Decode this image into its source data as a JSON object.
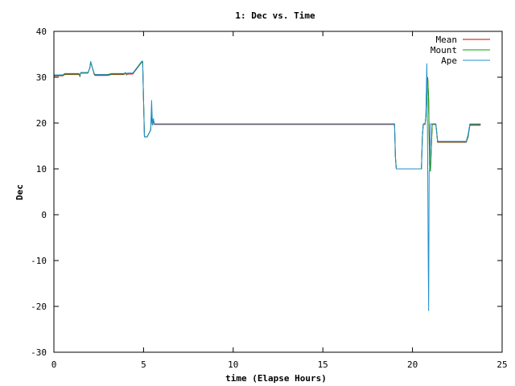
{
  "chart_data": {
    "type": "line",
    "title": "1: Dec vs. Time",
    "xlabel": "time (Elapse Hours)",
    "ylabel": "Dec",
    "xlim": [
      0,
      25
    ],
    "ylim": [
      -30,
      40
    ],
    "xticks": [
      "0",
      "5",
      "10",
      "15",
      "20",
      "25"
    ],
    "yticks": [
      "-30",
      "-20",
      "-10",
      "0",
      "10",
      "20",
      "30",
      "40"
    ],
    "grid": false,
    "legend_position": "top-right",
    "series": [
      {
        "name": "Mean",
        "color": "#cc0000",
        "x": [
          0,
          0.5,
          0.6,
          1.4,
          1.45,
          1.5,
          1.9,
          2.0,
          2.05,
          2.15,
          2.25,
          2.3,
          2.7,
          3.0,
          3.2,
          3.9,
          4.0,
          4.05,
          4.1,
          4.4,
          4.9,
          4.95,
          5.0,
          5.05,
          5.1,
          5.2,
          5.4,
          5.45,
          5.5,
          5.55,
          5.6,
          5.65,
          19.0,
          19.05,
          19.1,
          19.2,
          20.5,
          20.55,
          20.6,
          20.7,
          20.75,
          20.8,
          20.85,
          20.9,
          20.95,
          21.0,
          21.1,
          21.2,
          21.3,
          21.35,
          21.4,
          21.5,
          23.0,
          23.1,
          23.2,
          23.3,
          23.8
        ],
        "y": [
          30.3,
          30.3,
          30.6,
          30.6,
          30.2,
          30.9,
          30.9,
          32.0,
          33.3,
          32.0,
          30.6,
          30.4,
          30.4,
          30.4,
          30.6,
          30.6,
          30.9,
          30.5,
          30.7,
          30.7,
          33.3,
          33.3,
          25.0,
          17.0,
          17.0,
          17.0,
          18.5,
          23.0,
          19.5,
          20.5,
          19.7,
          19.7,
          19.7,
          12.5,
          10.0,
          10.0,
          10.0,
          17.0,
          19.7,
          19.7,
          21.5,
          29.5,
          30.0,
          25.0,
          11.0,
          9.5,
          19.7,
          19.7,
          19.7,
          18.0,
          15.8,
          15.8,
          15.8,
          17.0,
          19.5,
          19.5,
          19.5
        ]
      },
      {
        "name": "Mount",
        "color": "#00a000",
        "x": [
          0,
          0.5,
          0.6,
          1.4,
          1.45,
          1.5,
          1.9,
          2.0,
          2.05,
          2.15,
          2.25,
          2.3,
          2.7,
          3.0,
          3.2,
          3.9,
          4.0,
          4.05,
          4.1,
          4.4,
          4.9,
          4.95,
          5.0,
          5.05,
          5.1,
          5.2,
          5.4,
          5.45,
          5.5,
          5.55,
          5.6,
          5.65,
          19.0,
          19.05,
          19.1,
          19.2,
          20.5,
          20.55,
          20.6,
          20.7,
          20.75,
          20.8,
          20.85,
          20.9,
          20.95,
          21.0,
          21.1,
          21.2,
          21.3,
          21.35,
          21.4,
          21.5,
          23.0,
          23.1,
          23.2,
          23.3,
          23.8
        ],
        "y": [
          30.4,
          30.4,
          30.7,
          30.7,
          30.3,
          31.0,
          31.0,
          32.0,
          33.3,
          32.0,
          30.7,
          30.5,
          30.5,
          30.5,
          30.7,
          30.7,
          31.0,
          30.6,
          30.8,
          30.8,
          33.3,
          33.3,
          25.0,
          17.0,
          17.0,
          17.0,
          18.5,
          23.0,
          19.5,
          20.5,
          19.8,
          19.8,
          19.8,
          12.5,
          10.0,
          10.0,
          10.0,
          17.0,
          19.8,
          19.8,
          21.5,
          29.5,
          30.0,
          25.0,
          11.0,
          9.5,
          19.8,
          19.8,
          19.8,
          18.0,
          15.9,
          15.9,
          15.9,
          17.0,
          19.7,
          19.7,
          19.7
        ]
      },
      {
        "name": "Ape",
        "color": "#1f8fce",
        "x": [
          0,
          0.5,
          0.6,
          1.4,
          1.45,
          1.5,
          1.9,
          2.0,
          2.05,
          2.15,
          2.25,
          2.3,
          2.7,
          3.0,
          3.2,
          3.9,
          4.0,
          4.05,
          4.1,
          4.4,
          4.9,
          4.95,
          5.0,
          5.05,
          5.1,
          5.2,
          5.4,
          5.45,
          5.5,
          5.55,
          5.6,
          5.65,
          19.0,
          19.05,
          19.1,
          19.2,
          20.5,
          20.55,
          20.6,
          20.7,
          20.75,
          20.8,
          20.82,
          20.85,
          20.88,
          20.9,
          20.93,
          20.95,
          21.0,
          21.05,
          21.1,
          21.2,
          21.3,
          21.35,
          21.4,
          21.5,
          23.0,
          23.1,
          23.2,
          23.3,
          23.8
        ],
        "y": [
          30.5,
          30.5,
          30.8,
          30.8,
          30.4,
          31.0,
          31.0,
          32.0,
          33.5,
          32.0,
          30.8,
          30.6,
          30.6,
          30.6,
          30.8,
          30.8,
          31.0,
          30.7,
          30.9,
          30.9,
          33.5,
          33.5,
          25.0,
          17.0,
          17.0,
          17.0,
          18.5,
          25.0,
          19.5,
          21.0,
          19.8,
          19.8,
          19.8,
          12.5,
          10.0,
          10.0,
          10.0,
          17.0,
          19.8,
          19.8,
          21.5,
          33.0,
          26.0,
          11.0,
          -11.0,
          -21.0,
          9.5,
          9.5,
          19.8,
          19.8,
          19.8,
          19.8,
          19.8,
          18.0,
          16.0,
          16.0,
          16.0,
          17.5,
          19.8,
          19.8,
          19.8
        ]
      }
    ]
  }
}
